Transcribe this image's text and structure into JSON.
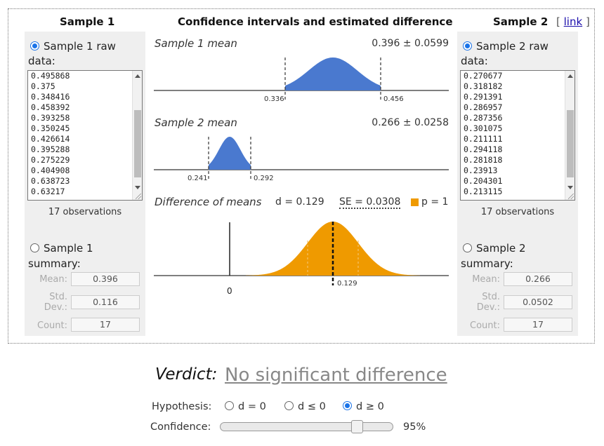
{
  "headers": {
    "sample1": "Sample 1",
    "center": "Confidence intervals and estimated difference",
    "sample2": "Sample 2",
    "link_open": "[",
    "link_text": "link",
    "link_close": "]"
  },
  "sample1": {
    "raw_label_line1": "Sample 1 raw",
    "raw_label_line2": "data:",
    "raw_data": [
      "0.495868",
      "0.375",
      "0.348416",
      "0.458392",
      "0.393258",
      "0.350245",
      "0.426614",
      "0.395288",
      "0.275229",
      "0.404908",
      "0.638723",
      "0.63217"
    ],
    "observations": "17 observations",
    "summary_label_line1": "Sample 1",
    "summary_label_line2": "summary:",
    "mean_label": "Mean:",
    "std_label_line1": "Std.",
    "std_label_line2": "Dev.:",
    "count_label": "Count:",
    "mean": "0.396",
    "std": "0.116",
    "count": "17",
    "mode": "raw"
  },
  "sample2": {
    "raw_label_line1": "Sample 2 raw",
    "raw_label_line2": "data:",
    "raw_data": [
      "0.270677",
      "0.318182",
      "0.291391",
      "0.286957",
      "0.287356",
      "0.301075",
      "0.211111",
      "0.294118",
      "0.281818",
      "0.23913",
      "0.204301",
      "0.213115"
    ],
    "observations": "17 observations",
    "summary_label_line1": "Sample 2",
    "summary_label_line2": "summary:",
    "mean_label": "Mean:",
    "std_label_line1": "Std.",
    "std_label_line2": "Dev.:",
    "count_label": "Count:",
    "mean": "0.266",
    "std": "0.0502",
    "count": "17",
    "mode": "raw"
  },
  "plots": {
    "sample1_mean": {
      "title": "Sample 1 mean",
      "value": "0.396 ± 0.0599",
      "mean": 0.396,
      "ci_low_label": "0.336",
      "ci_high_label": "0.456",
      "color": "#4a79cf"
    },
    "sample2_mean": {
      "title": "Sample 2 mean",
      "value": "0.266 ± 0.0258",
      "mean": 0.266,
      "ci_low_label": "0.241",
      "ci_high_label": "0.292",
      "color": "#4a79cf"
    },
    "difference": {
      "title": "Difference of means",
      "d_text": "d = 0.129",
      "se_text": "SE = 0.0308",
      "p_text": "p = 1",
      "zero_label": "0",
      "d_label": "0.129",
      "color": "#ef9a00"
    }
  },
  "verdict": {
    "label": "Verdict:",
    "value": "No significant difference"
  },
  "hypothesis": {
    "label": "Hypothesis:",
    "options": [
      "d = 0",
      "d ≤ 0",
      "d ≥ 0"
    ],
    "selected": 2
  },
  "confidence": {
    "label": "Confidence:",
    "value_text": "95%",
    "value": 0.95
  }
}
